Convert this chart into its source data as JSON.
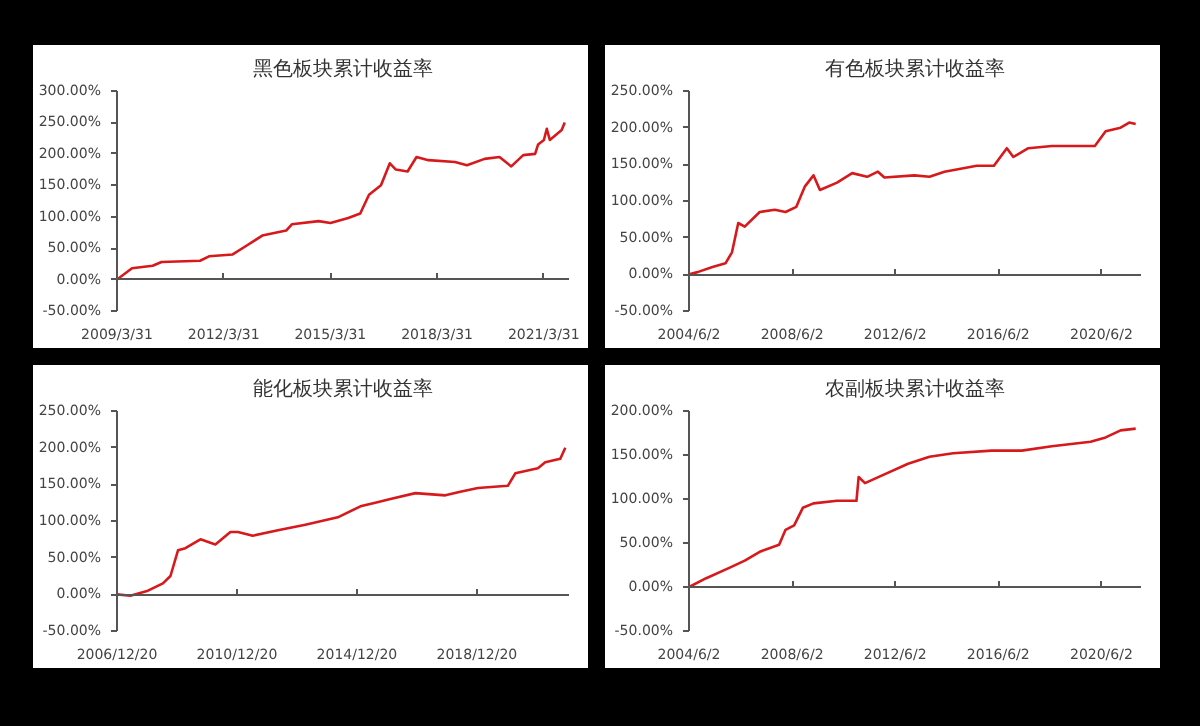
{
  "chart_data": [
    {
      "type": "line",
      "title": "黑色板块累计收益率",
      "x": [
        "2009-03-31",
        "2009-09",
        "2010-04",
        "2010-07",
        "2011-08",
        "2011-11",
        "2012-07",
        "2012-12",
        "2013-05",
        "2014-01",
        "2014-03",
        "2014-12",
        "2015-04",
        "2015-10",
        "2016-02",
        "2016-05",
        "2016-09",
        "2016-12",
        "2017-02",
        "2017-06",
        "2017-09",
        "2018-01",
        "2018-10",
        "2019-02",
        "2019-08",
        "2020-01",
        "2020-05",
        "2020-09",
        "2021-01",
        "2021-02",
        "2021-04",
        "2021-05",
        "2021-06",
        "2021-10",
        "2021-11"
      ],
      "series": [
        {
          "color": "#d7191c",
          "values": [
            0,
            18,
            22,
            28,
            30,
            37,
            40,
            55,
            70,
            78,
            88,
            93,
            90,
            98,
            105,
            135,
            150,
            185,
            175,
            172,
            195,
            190,
            187,
            182,
            192,
            195,
            180,
            198,
            200,
            215,
            222,
            240,
            222,
            238,
            250
          ]
        }
      ],
      "xlim": [
        "2009-03-31",
        "2021-12-15"
      ],
      "xticks": [
        {
          "value": "2009-03-31",
          "label": "2009/3/31"
        },
        {
          "value": "2012-03-31",
          "label": "2012/3/31"
        },
        {
          "value": "2015-03-31",
          "label": "2015/3/31"
        },
        {
          "value": "2018-03-31",
          "label": "2018/3/31"
        },
        {
          "value": "2021-03-31",
          "label": "2021/3/31"
        }
      ],
      "ylim": [
        -50,
        300
      ],
      "yticks": [
        {
          "value": -50,
          "label": "-50.00%"
        },
        {
          "value": 0,
          "label": "0.00%"
        },
        {
          "value": 50,
          "label": "50.00%"
        },
        {
          "value": 100,
          "label": "100.00%"
        },
        {
          "value": 150,
          "label": "150.00%"
        },
        {
          "value": 200,
          "label": "200.00%"
        },
        {
          "value": 250,
          "label": "250.00%"
        },
        {
          "value": 300,
          "label": "300.00%"
        }
      ],
      "marker": "none",
      "line_style": "solid"
    },
    {
      "type": "line",
      "title": "有色板块累计收益率",
      "x": [
        "2004-06-02",
        "2004-10",
        "2005-05",
        "2005-11",
        "2006-02",
        "2006-05",
        "2006-08",
        "2007-03",
        "2007-10",
        "2008-03",
        "2008-08",
        "2008-12",
        "2009-04",
        "2009-07",
        "2010-03",
        "2010-10",
        "2011-05",
        "2011-10",
        "2012-01",
        "2013-03",
        "2013-10",
        "2014-05",
        "2015-08",
        "2016-04",
        "2016-10",
        "2017-01",
        "2017-08",
        "2018-07",
        "2020-03",
        "2020-08",
        "2021-03",
        "2021-07",
        "2021-10"
      ],
      "series": [
        {
          "color": "#d7191c",
          "values": [
            0,
            3,
            10,
            15,
            30,
            70,
            65,
            85,
            88,
            85,
            92,
            120,
            135,
            115,
            125,
            138,
            133,
            140,
            132,
            135,
            133,
            140,
            148,
            148,
            172,
            160,
            172,
            175,
            175,
            195,
            200,
            207,
            205
          ]
        }
      ],
      "xlim": [
        "2004-06-02",
        "2021-12-15"
      ],
      "xticks": [
        {
          "value": "2004-06-02",
          "label": "2004/6/2"
        },
        {
          "value": "2008-06-02",
          "label": "2008/6/2"
        },
        {
          "value": "2012-06-02",
          "label": "2012/6/2"
        },
        {
          "value": "2016-06-02",
          "label": "2016/6/2"
        },
        {
          "value": "2020-06-02",
          "label": "2020/6/2"
        }
      ],
      "ylim": [
        -50,
        250
      ],
      "yticks": [
        {
          "value": -50,
          "label": "-50.00%"
        },
        {
          "value": 0,
          "label": "0.00%"
        },
        {
          "value": 50,
          "label": "50.00%"
        },
        {
          "value": 100,
          "label": "100.00%"
        },
        {
          "value": 150,
          "label": "150.00%"
        },
        {
          "value": 200,
          "label": "200.00%"
        },
        {
          "value": 250,
          "label": "250.00%"
        }
      ],
      "marker": "none",
      "line_style": "solid"
    },
    {
      "type": "line",
      "title": "能化板块累计收益率",
      "x": [
        "2006-12-20",
        "2007-06",
        "2008-01",
        "2008-07",
        "2008-10",
        "2009-01",
        "2009-04",
        "2009-10",
        "2010-04",
        "2010-10",
        "2011-01",
        "2011-07",
        "2012-06",
        "2013-04",
        "2014-05",
        "2015-02",
        "2015-08",
        "2016-02",
        "2016-12",
        "2017-12",
        "2018-06",
        "2019-01",
        "2020-01",
        "2020-04",
        "2021-01",
        "2021-04",
        "2021-10",
        "2021-12"
      ],
      "series": [
        {
          "color": "#d7191c",
          "values": [
            0,
            -2,
            5,
            15,
            25,
            60,
            63,
            75,
            68,
            85,
            85,
            80,
            88,
            95,
            105,
            120,
            125,
            130,
            138,
            135,
            140,
            145,
            148,
            165,
            172,
            180,
            185,
            200
          ]
        }
      ],
      "xlim": [
        "2006-12-20",
        "2022-01-15"
      ],
      "xticks": [
        {
          "value": "2006-12-20",
          "label": "2006/12/20"
        },
        {
          "value": "2010-12-20",
          "label": "2010/12/20"
        },
        {
          "value": "2014-12-20",
          "label": "2014/12/20"
        },
        {
          "value": "2018-12-20",
          "label": "2018/12/20"
        }
      ],
      "ylim": [
        -50,
        250
      ],
      "yticks": [
        {
          "value": -50,
          "label": "-50.00%"
        },
        {
          "value": 0,
          "label": "0.00%"
        },
        {
          "value": 50,
          "label": "50.00%"
        },
        {
          "value": 100,
          "label": "100.00%"
        },
        {
          "value": 150,
          "label": "150.00%"
        },
        {
          "value": 200,
          "label": "200.00%"
        },
        {
          "value": 250,
          "label": "250.00%"
        }
      ],
      "marker": "none",
      "line_style": "solid"
    },
    {
      "type": "line",
      "title": "农副板块累计收益率",
      "x": [
        "2004-06-02",
        "2005-02",
        "2006-01",
        "2006-08",
        "2007-03",
        "2007-12",
        "2008-03",
        "2008-07",
        "2008-11",
        "2009-04",
        "2010-03",
        "2010-12",
        "2011-01",
        "2011-04",
        "2012-01",
        "2012-12",
        "2013-10",
        "2014-09",
        "2016-03",
        "2017-05",
        "2018-07",
        "2020-01",
        "2020-08",
        "2021-03",
        "2021-10"
      ],
      "series": [
        {
          "color": "#d7191c",
          "values": [
            0,
            10,
            22,
            30,
            40,
            48,
            65,
            70,
            90,
            95,
            98,
            98,
            125,
            118,
            128,
            140,
            148,
            152,
            155,
            155,
            160,
            165,
            170,
            178,
            180
          ]
        }
      ],
      "xlim": [
        "2004-06-02",
        "2021-12-15"
      ],
      "xticks": [
        {
          "value": "2004-06-02",
          "label": "2004/6/2"
        },
        {
          "value": "2008-06-02",
          "label": "2008/6/2"
        },
        {
          "value": "2012-06-02",
          "label": "2012/6/2"
        },
        {
          "value": "2016-06-02",
          "label": "2016/6/2"
        },
        {
          "value": "2020-06-02",
          "label": "2020/6/2"
        }
      ],
      "ylim": [
        -50,
        200
      ],
      "yticks": [
        {
          "value": -50,
          "label": "-50.00%"
        },
        {
          "value": 0,
          "label": "0.00%"
        },
        {
          "value": 50,
          "label": "50.00%"
        },
        {
          "value": 100,
          "label": "100.00%"
        },
        {
          "value": 150,
          "label": "150.00%"
        },
        {
          "value": 200,
          "label": "200.00%"
        }
      ],
      "marker": "none",
      "line_style": "solid"
    }
  ]
}
